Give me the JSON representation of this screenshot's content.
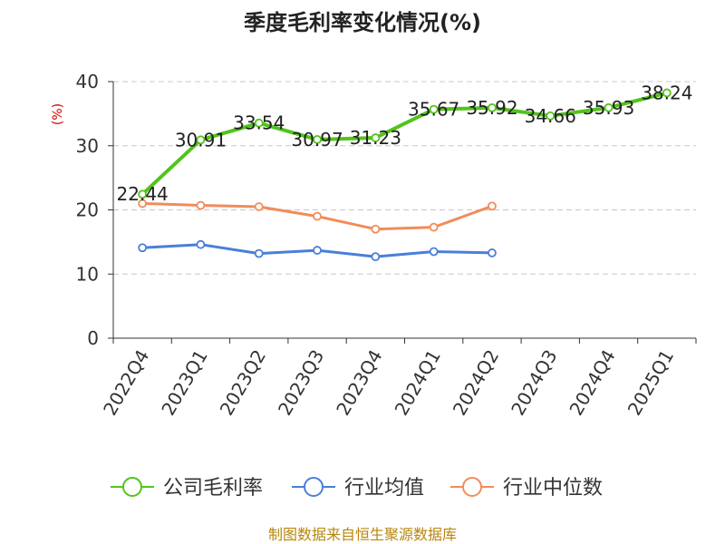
{
  "chart_data": {
    "type": "line",
    "title": "季度毛利率变化情况(%)",
    "ylabel": "(%)",
    "xlabel": "",
    "ylim": [
      0,
      40
    ],
    "yticks": [
      0,
      10,
      20,
      30,
      40
    ],
    "grid": true,
    "legend_position": "bottom",
    "categories": [
      "2022Q4",
      "2023Q1",
      "2023Q2",
      "2023Q3",
      "2023Q4",
      "2024Q1",
      "2024Q2",
      "2024Q3",
      "2024Q4",
      "2025Q1"
    ],
    "series": [
      {
        "name": "公司毛利率",
        "color": "#52c41a",
        "show_labels": true,
        "values": [
          22.44,
          30.91,
          33.54,
          30.97,
          31.23,
          35.67,
          35.92,
          34.66,
          35.93,
          38.24
        ],
        "labels": [
          "22.44",
          "30.91",
          "33.54",
          "30.97",
          "31.23",
          "35.67",
          "35.92",
          "34.66",
          "35.93",
          "38.24"
        ]
      },
      {
        "name": "行业均值",
        "color": "#4a7fd9",
        "show_labels": false,
        "values": [
          14.1,
          14.6,
          13.2,
          13.7,
          12.7,
          13.5,
          13.3,
          null,
          null,
          null
        ]
      },
      {
        "name": "行业中位数",
        "color": "#f28c5a",
        "show_labels": false,
        "values": [
          21.0,
          20.7,
          20.5,
          19.0,
          17.0,
          17.3,
          20.6,
          null,
          null,
          null
        ]
      }
    ]
  },
  "source": "制图数据来自恒生聚源数据库"
}
